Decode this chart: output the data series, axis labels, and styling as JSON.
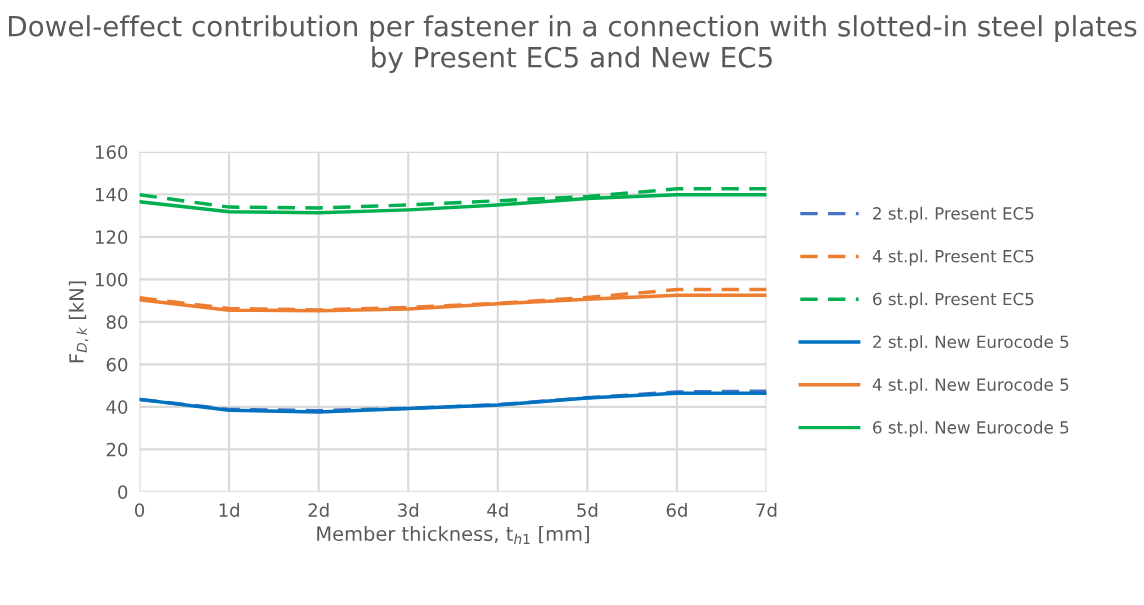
{
  "chart_data": {
    "type": "line",
    "title": "Dowel-effect contribution per fastener in a connection with slotted-in steel plates by Present EC5 and New EC5",
    "xlabel": "Member thickness, t$_{h1}$ [mm]",
    "ylabel": "F$_{D,k}$ [kN]",
    "categories": [
      "0",
      "1d",
      "2d",
      "3d",
      "4d",
      "5d",
      "6d",
      "7d"
    ],
    "ylim": [
      0,
      160
    ],
    "yticks": [
      0,
      20,
      40,
      60,
      80,
      100,
      120,
      140,
      160
    ],
    "grid": true,
    "legend": "right",
    "marker": "none",
    "series": [
      {
        "name": "2 st.pl. Present EC5",
        "color": "#4472c4",
        "line_style": "dashed",
        "values": [
          43.5,
          38.8,
          38.2,
          39.3,
          41,
          44.3,
          47,
          47.4
        ]
      },
      {
        "name": "4 st.pl. Present EC5",
        "color": "#ed7d31",
        "line_style": "dashed",
        "values": [
          91.3,
          86.3,
          85.6,
          86.8,
          88.7,
          91.5,
          95.2,
          95.2
        ]
      },
      {
        "name": "6 st.pl. Present EC5",
        "color": "#00b050",
        "line_style": "dashed",
        "values": [
          139.8,
          134,
          133.6,
          135,
          137,
          139,
          142.6,
          142.6
        ]
      },
      {
        "name": "2 st.pl. New Eurocode 5",
        "color": "#0070c0",
        "line_style": "solid",
        "values": [
          43.5,
          38.4,
          37.6,
          39.2,
          40.9,
          44.2,
          46.4,
          46.4
        ]
      },
      {
        "name": "4 st.pl. New Eurocode 5",
        "color": "#ed7d31",
        "line_style": "solid",
        "values": [
          90.4,
          85.5,
          85.2,
          86.1,
          88.5,
          90.6,
          92.5,
          92.5
        ]
      },
      {
        "name": "6 st.pl. New Eurocode 5",
        "color": "#00b050",
        "line_style": "solid",
        "values": [
          136.5,
          131.8,
          131.3,
          132.7,
          135,
          138,
          139.8,
          139.8
        ]
      }
    ]
  }
}
